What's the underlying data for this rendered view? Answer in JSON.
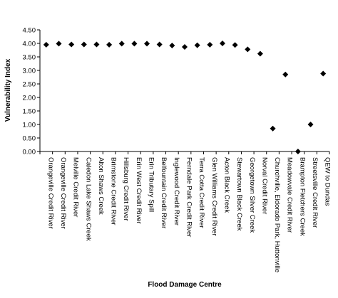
{
  "chart_data": {
    "type": "scatter",
    "title": "",
    "xlabel": "Flood Damage Centre",
    "ylabel": "Vulnerability Index",
    "ylim": [
      0,
      4.5
    ],
    "yticks": [
      "0.00",
      "0.50",
      "1.00",
      "1.50",
      "2.00",
      "2.50",
      "3.00",
      "3.50",
      "4.00",
      "4.50"
    ],
    "grid": false,
    "legend": "none",
    "marker": "diamond",
    "marker_color": "#000000",
    "categories": [
      "Orangeville Credit River",
      "Orangeville Credit River",
      "Melville Credit River",
      "Caledon Lake Shaws Creek",
      "Alton Shaws Creek",
      "Brimstone Credit River",
      "Hillsburg Credit River",
      "Erin West Credit River",
      "Erin Tributary Spill",
      "Belfountain Credit River",
      "Inglewood Credit River",
      "Ferndale Park Credit River",
      "Terra Cotta Credit River",
      "Glen Williams Credit River",
      "Acton Black Creek",
      "Stewartown Black Creek",
      "Georgetown Silver Creek",
      "Norval Credit River",
      "Churchville, Eldorado Park, Huttonville",
      "Meadowvale Credit River",
      "Brampton Fletchers Creek",
      "Streetsville Credit River",
      "QEW to Dundas"
    ],
    "values": [
      3.95,
      3.99,
      3.96,
      3.96,
      3.96,
      3.95,
      3.99,
      3.99,
      3.99,
      3.96,
      3.92,
      3.87,
      3.93,
      3.95,
      4.0,
      3.94,
      3.78,
      3.62,
      0.85,
      2.85,
      0.0,
      1.0,
      2.88
    ]
  }
}
